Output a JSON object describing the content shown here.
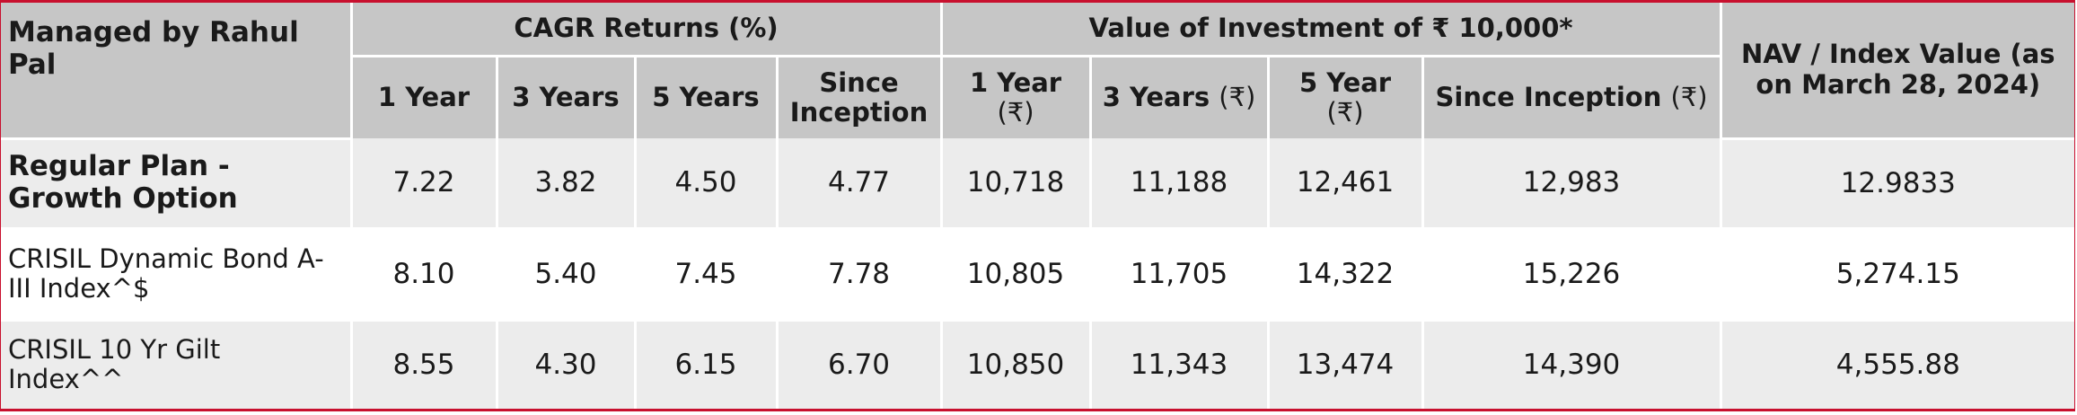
{
  "table": {
    "corner_label": "Managed by Rahul Pal",
    "groups": {
      "cagr": "CAGR Returns (%)",
      "value": "Value of Investment of ₹ 10,000*",
      "nav": "NAV / Index Value (as on March 28, 2024)"
    },
    "cagr_cols": [
      "1 Year",
      "3 Years",
      "5 Years",
      "Since Inception"
    ],
    "value_cols": [
      "1 Year",
      "3 Years",
      "5 Year",
      "Since Inception"
    ],
    "currency_suffix": "(₹)",
    "rows": [
      {
        "label": "Regular Plan - Growth Option",
        "cagr": [
          "7.22",
          "3.82",
          "4.50",
          "4.77"
        ],
        "value": [
          "10,718",
          "11,188",
          "12,461",
          "12,983"
        ],
        "nav": "12.9833"
      },
      {
        "label": "CRISIL Dynamic Bond A-III Index^$",
        "cagr": [
          "8.10",
          "5.40",
          "7.45",
          "7.78"
        ],
        "value": [
          "10,805",
          "11,705",
          "14,322",
          "15,226"
        ],
        "nav": "5,274.15"
      },
      {
        "label": "CRISIL 10 Yr Gilt Index^^",
        "cagr": [
          "8.55",
          "4.30",
          "6.15",
          "6.70"
        ],
        "value": [
          "10,850",
          "11,343",
          "13,474",
          "14,390"
        ],
        "nav": "4,555.88"
      }
    ]
  },
  "colors": {
    "accent_border": "#c8102e",
    "header_bg": "#c6c6c6",
    "row_alt_bg": "#ececec"
  }
}
